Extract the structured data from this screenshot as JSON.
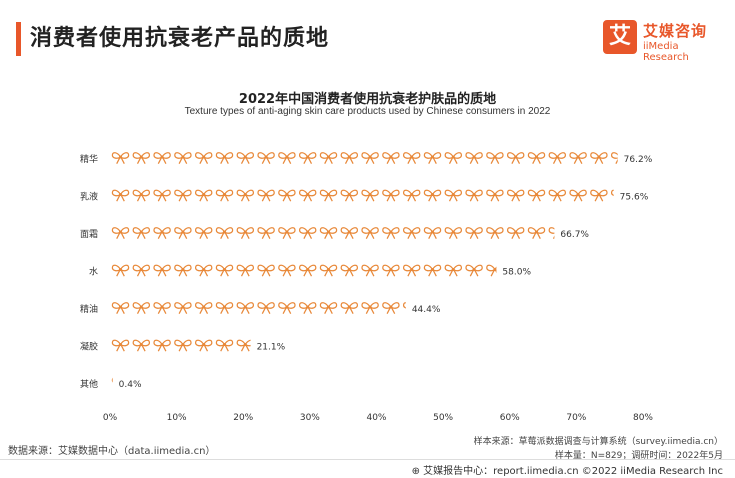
{
  "header": {
    "title": "消费者使用抗衰老产品的质地"
  },
  "logo": {
    "mark": "艾",
    "cn": "艾媒咨询",
    "en": "iiMedia Research"
  },
  "colors": {
    "accent": "#e8572a",
    "icon": "#e8893a"
  },
  "chart_data": {
    "type": "bar",
    "title": "2022年中国消费者使用抗衰老护肤品的质地",
    "subtitle": "Texture types of anti-aging skin care products used by Chinese consumers in 2022",
    "categories": [
      "精华",
      "乳液",
      "面霜",
      "水",
      "精油",
      "凝胶",
      "其他"
    ],
    "values": [
      76.2,
      75.6,
      66.7,
      58.0,
      44.4,
      21.1,
      0.4
    ],
    "value_labels": [
      "76.2%",
      "75.6%",
      "66.7%",
      "58.0%",
      "44.4%",
      "21.1%",
      "0.4%"
    ],
    "xlim": [
      0,
      80
    ],
    "x_ticks": [
      "0%",
      "10%",
      "20%",
      "30%",
      "40%",
      "50%",
      "60%",
      "70%",
      "80%"
    ],
    "grid": false,
    "orientation": "horizontal",
    "mark": "bow-icon"
  },
  "footer": {
    "source_left": "数据来源：艾媒数据中心（data.iimedia.cn）",
    "sample_source": "样本来源：草莓派数据调查与计算系统（survey.iimedia.cn）",
    "sample_size": "样本量：N=829；调研时间：2022年5月",
    "copyright": "⊕ 艾媒报告中心：report.iimedia.cn  ©2022  iiMedia Research Inc"
  }
}
